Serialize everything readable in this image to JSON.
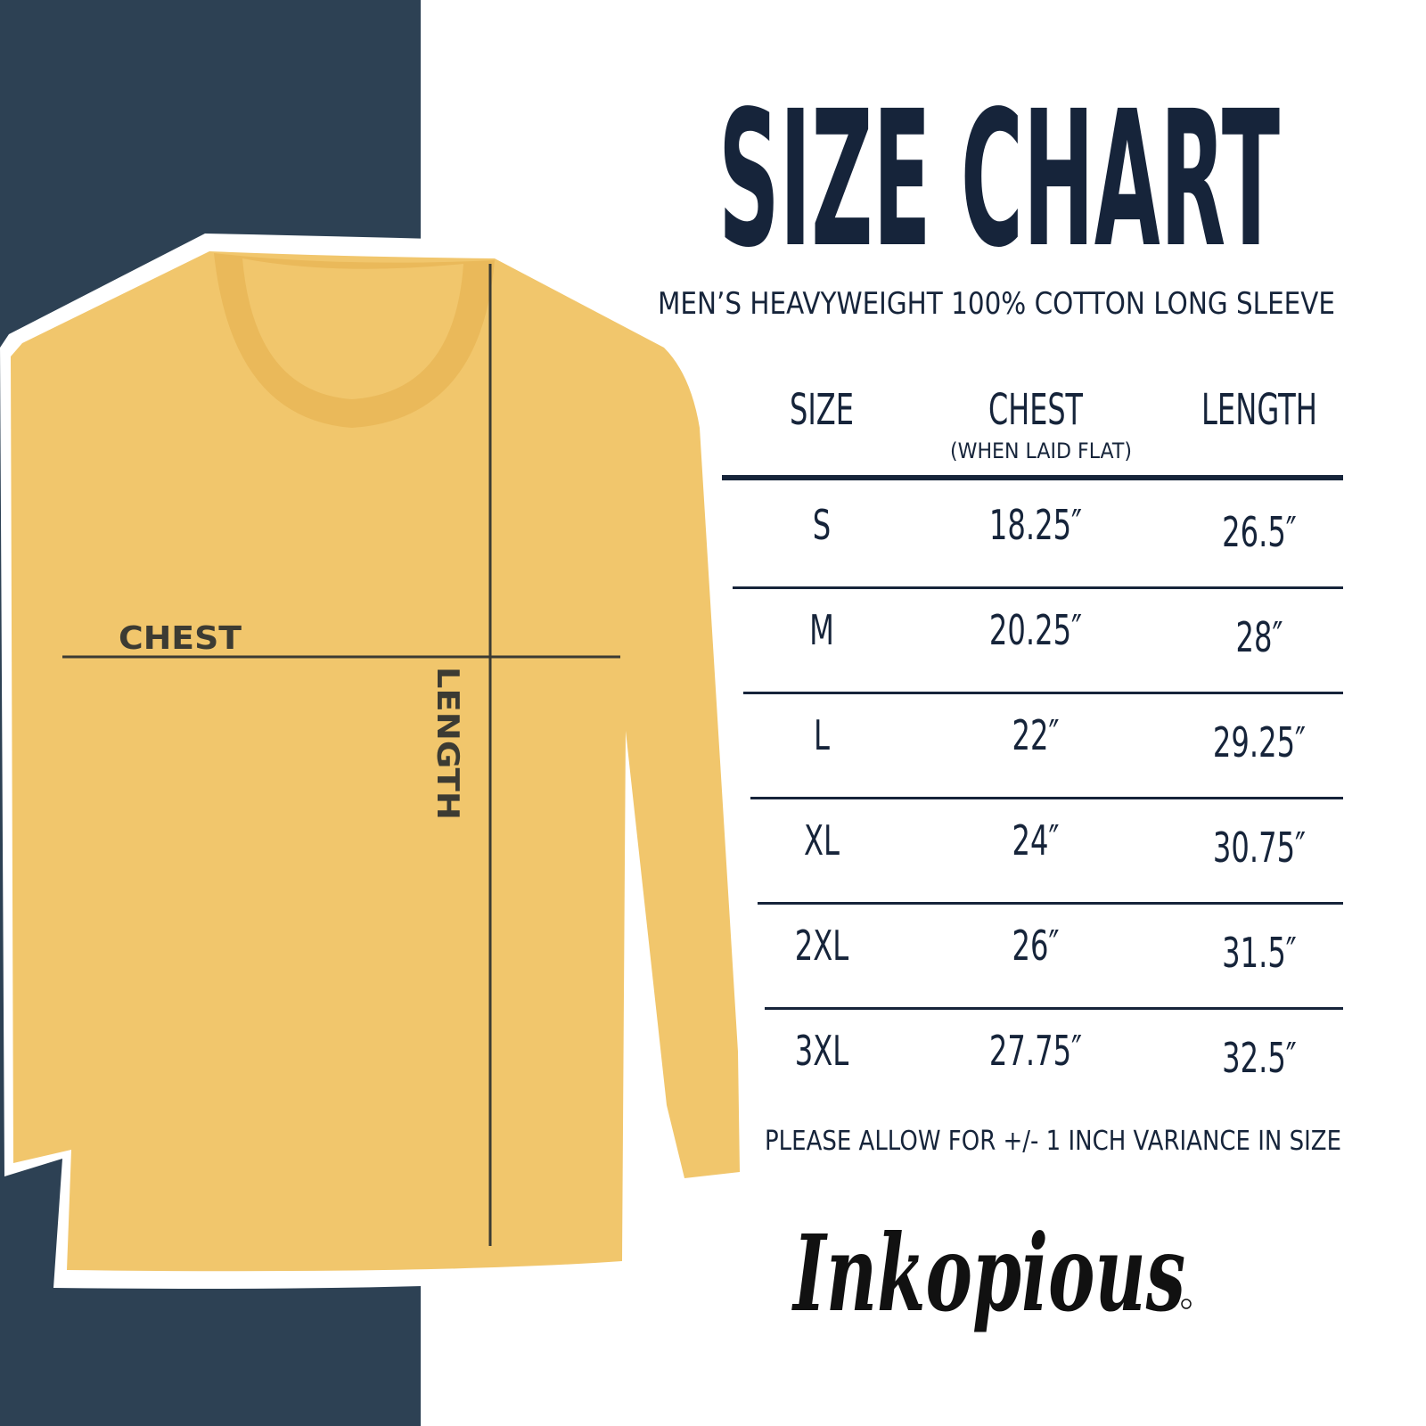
{
  "title": "SIZE CHART",
  "subtitle": "MEN’S HEAVYWEIGHT 100% COTTON LONG SLEEVE",
  "colors": {
    "panel": "#2d4154",
    "text": "#16243a",
    "shirt": "#f1c66c"
  },
  "shirt_labels": {
    "chest": "CHEST",
    "length": "LENGTH"
  },
  "table": {
    "headers": {
      "size": "SIZE",
      "chest": "CHEST",
      "chest_note": "(WHEN LAID FLAT)",
      "length": "LENGTH"
    },
    "rows": [
      {
        "size": "S",
        "chest": "18.25″",
        "length": "26.5″"
      },
      {
        "size": "M",
        "chest": "20.25″",
        "length": "28″"
      },
      {
        "size": "L",
        "chest": "22″",
        "length": "29.25″"
      },
      {
        "size": "XL",
        "chest": "24″",
        "length": "30.75″"
      },
      {
        "size": "2XL",
        "chest": "26″",
        "length": "31.5″"
      },
      {
        "size": "3XL",
        "chest": "27.75″",
        "length": "32.5″"
      }
    ]
  },
  "note": "PLEASE ALLOW FOR +/- 1 INCH VARIANCE IN SIZE",
  "brand": "Inkopious"
}
